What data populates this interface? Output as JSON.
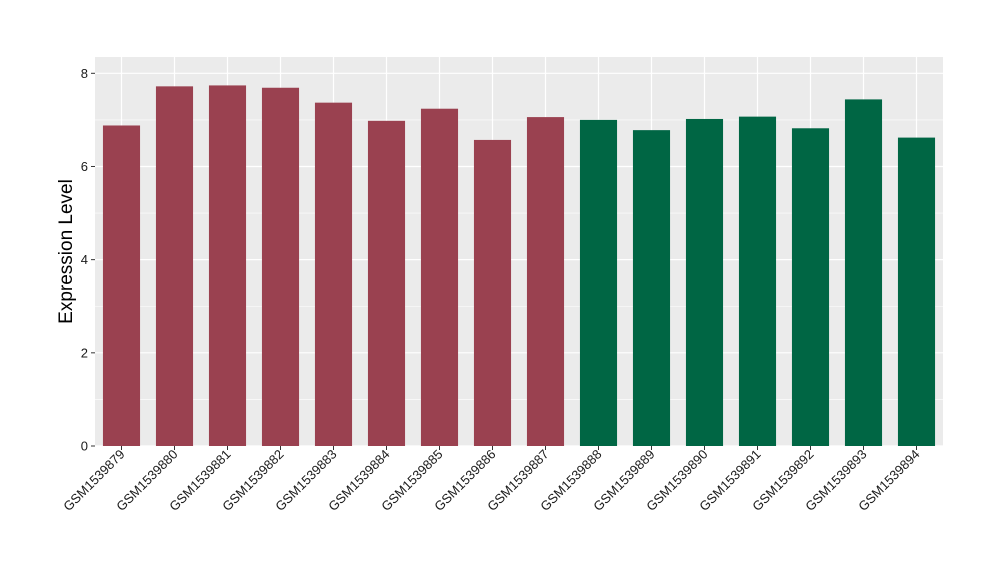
{
  "chart_data": {
    "type": "bar",
    "title": "",
    "xlabel": "",
    "ylabel": "Expression Level",
    "ylim": [
      0,
      8.35
    ],
    "yticks": [
      0,
      2,
      4,
      6,
      8
    ],
    "grid": true,
    "legend": "none",
    "categories": [
      "GSM1539879",
      "GSM1539880",
      "GSM1539881",
      "GSM1539882",
      "GSM1539883",
      "GSM1539884",
      "GSM1539885",
      "GSM1539886",
      "GSM1539887",
      "GSM1539888",
      "GSM1539889",
      "GSM1539890",
      "GSM1539891",
      "GSM1539892",
      "GSM1539893",
      "GSM1539894"
    ],
    "values": [
      6.88,
      7.72,
      7.74,
      7.69,
      7.37,
      6.98,
      7.24,
      6.57,
      7.06,
      7.0,
      6.78,
      7.02,
      7.07,
      6.82,
      7.44,
      6.62
    ],
    "group_index": [
      0,
      0,
      0,
      0,
      0,
      0,
      0,
      0,
      0,
      1,
      1,
      1,
      1,
      1,
      1,
      1
    ],
    "group_colors": [
      "#9a4150",
      "#006644"
    ]
  },
  "style": {
    "panel_background": "#ebebeb",
    "grid_color": "#ffffff"
  }
}
